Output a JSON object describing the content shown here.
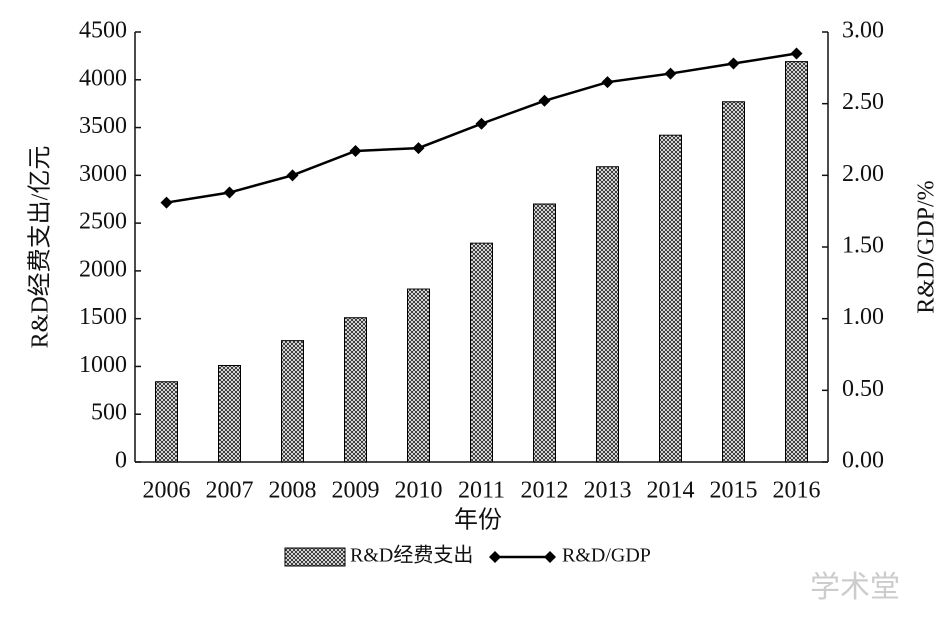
{
  "chart_data": {
    "type": "combo",
    "x_label": "年份",
    "y_label": "R&D经费支出/亿元",
    "y2_label": "R&D/GDP/%",
    "watermark": "学术堂",
    "categories": [
      "2006",
      "2007",
      "2008",
      "2009",
      "2010",
      "2011",
      "2012",
      "2013",
      "2014",
      "2015",
      "2016"
    ],
    "series": [
      {
        "name": "R&D经费支出",
        "type": "bar",
        "color": "#000000",
        "values": [
          840,
          1010,
          1270,
          1510,
          1810,
          2290,
          2700,
          3090,
          3420,
          3770,
          4190
        ]
      },
      {
        "name": "R&D/GDP",
        "type": "line",
        "axis": "y2",
        "color": "#000000",
        "values": [
          1.81,
          1.88,
          2.0,
          2.17,
          2.19,
          2.36,
          2.52,
          2.65,
          2.71,
          2.78,
          2.85
        ]
      }
    ],
    "ylim": [
      0,
      4500
    ],
    "yticks": [
      0,
      500,
      1000,
      1500,
      2000,
      2500,
      3000,
      3500,
      4000,
      4500
    ],
    "y2lim": [
      0,
      3
    ],
    "y2ticks": [
      {
        "value": 0,
        "label": "0.00"
      },
      {
        "value": 0.5,
        "label": "0.50"
      },
      {
        "value": 1,
        "label": "1.00"
      },
      {
        "value": 1.5,
        "label": "1.50"
      },
      {
        "value": 2,
        "label": "2.00"
      },
      {
        "value": 2.5,
        "label": "2.50"
      },
      {
        "value": 3,
        "label": "3.00"
      }
    ],
    "legend": "bottom"
  }
}
